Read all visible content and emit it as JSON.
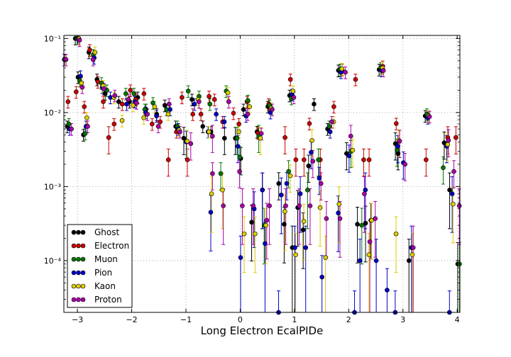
{
  "chart_data": {
    "type": "scatter",
    "title": "",
    "xlabel": "Long Electron EcalPIDe",
    "ylabel": "",
    "xlim": [
      -3.25,
      4.05
    ],
    "ylim": [
      2e-05,
      0.11
    ],
    "yscale": "log",
    "grid": true,
    "legend_position": "lower-left",
    "x_ticks": [
      -3,
      -2,
      -1,
      0,
      1,
      2,
      3,
      4
    ],
    "x_tick_labels": [
      "−3",
      "−2",
      "−1",
      "0",
      "1",
      "2",
      "3",
      "4"
    ],
    "y_ticks": [
      0.0001,
      0.001,
      0.01,
      0.1
    ],
    "y_tick_labels": [
      "10⁻⁴",
      "10⁻³",
      "10⁻²",
      "10⁻¹"
    ],
    "series": [
      {
        "name": "Ghost",
        "color": "#000000",
        "points": [
          [
            -3.25,
            0.055
          ],
          [
            -3.15,
            0.0065
          ],
          [
            -3.0,
            0.1
          ],
          [
            -2.95,
            0.03
          ],
          [
            -2.85,
            0.005
          ],
          [
            -2.75,
            0.065
          ],
          [
            -2.6,
            0.028
          ],
          [
            -2.45,
            0.018
          ],
          [
            -2.2,
            0.014
          ],
          [
            -2.0,
            0.014
          ],
          [
            -1.85,
            0.016
          ],
          [
            -1.7,
            0.011
          ],
          [
            -1.5,
            0.0095
          ],
          [
            -1.35,
            0.0125
          ],
          [
            -1.15,
            0.0065
          ],
          [
            -1.0,
            0.0045
          ],
          [
            -0.85,
            0.015
          ],
          [
            -0.65,
            0.0065
          ],
          [
            -0.5,
            0.0055
          ],
          [
            -0.25,
            0.0045
          ],
          [
            -0.05,
            0.0045
          ],
          [
            0.05,
            0.0024
          ],
          [
            0.1,
            0.011
          ],
          [
            0.25,
            0.00033
          ],
          [
            0.35,
            0.0055
          ],
          [
            0.45,
            0.0009
          ],
          [
            0.55,
            0.012
          ],
          [
            0.75,
            0.0011
          ],
          [
            0.85,
            0.00031
          ],
          [
            0.95,
            0.017
          ],
          [
            1.0,
            0.00015
          ],
          [
            1.1,
            0.00052
          ],
          [
            1.2,
            0.00026
          ],
          [
            1.3,
            0.0019
          ],
          [
            1.4,
            0.013
          ],
          [
            1.65,
            0.006
          ],
          [
            1.85,
            0.037
          ],
          [
            2.0,
            0.0028
          ],
          [
            2.2,
            0.00031
          ],
          [
            2.35,
            0.00032
          ],
          [
            2.45,
            0.00035
          ],
          [
            2.6,
            0.038
          ],
          [
            2.9,
            0.0038
          ],
          [
            2.95,
            0.0028
          ],
          [
            3.15,
            0.0001
          ],
          [
            3.45,
            0.009
          ],
          [
            3.8,
            0.0039
          ],
          [
            3.9,
            0.0009
          ],
          [
            4.05,
            9e-05
          ]
        ]
      },
      {
        "name": "Electron",
        "color": "#cc0000",
        "points": [
          [
            -3.25,
            0.053
          ],
          [
            -3.15,
            0.014
          ],
          [
            -3.0,
            0.019
          ],
          [
            -2.95,
            0.1
          ],
          [
            -2.85,
            0.012
          ],
          [
            -2.75,
            0.07
          ],
          [
            -2.6,
            0.026
          ],
          [
            -2.5,
            0.014
          ],
          [
            -2.4,
            0.0046
          ],
          [
            -2.3,
            0.007
          ],
          [
            -2.15,
            0.013
          ],
          [
            -2.0,
            0.02
          ],
          [
            -1.9,
            0.015
          ],
          [
            -1.75,
            0.018
          ],
          [
            -1.6,
            0.007
          ],
          [
            -1.45,
            0.0075
          ],
          [
            -1.3,
            0.0023
          ],
          [
            -1.15,
            0.0055
          ],
          [
            -1.05,
            0.016
          ],
          [
            -0.95,
            0.0023
          ],
          [
            -0.85,
            0.0095
          ],
          [
            -0.7,
            0.0095
          ],
          [
            -0.55,
            0.0165
          ],
          [
            -0.45,
            0.015
          ],
          [
            -0.3,
            0.0075
          ],
          [
            -0.1,
            0.0098
          ],
          [
            0.0,
            0.007
          ],
          [
            0.15,
            0.014
          ],
          [
            0.35,
            0.0053
          ],
          [
            0.55,
            0.013
          ],
          [
            0.85,
            0.0046
          ],
          [
            0.95,
            0.028
          ],
          [
            1.05,
            0.0023
          ],
          [
            1.2,
            0.0023
          ],
          [
            1.3,
            0.0071
          ],
          [
            1.5,
            0.0023
          ],
          [
            1.75,
            0.012
          ],
          [
            1.9,
            0.038
          ],
          [
            2.15,
            0.028
          ],
          [
            2.3,
            0.0023
          ],
          [
            2.4,
            0.0023
          ],
          [
            2.65,
            0.042
          ],
          [
            2.9,
            0.0071
          ],
          [
            3.45,
            0.0023
          ],
          [
            3.85,
            0.0046
          ],
          [
            4.0,
            0.0046
          ]
        ]
      },
      {
        "name": "Muon",
        "color": "#007700",
        "points": [
          [
            -3.25,
            0.055
          ],
          [
            -3.15,
            0.007
          ],
          [
            -3.0,
            0.1
          ],
          [
            -2.95,
            0.027
          ],
          [
            -2.85,
            0.0052
          ],
          [
            -2.7,
            0.06
          ],
          [
            -2.55,
            0.025
          ],
          [
            -2.45,
            0.02
          ],
          [
            -2.1,
            0.018
          ],
          [
            -1.95,
            0.018
          ],
          [
            -1.75,
            0.011
          ],
          [
            -1.6,
            0.0135
          ],
          [
            -1.35,
            0.011
          ],
          [
            -1.15,
            0.0065
          ],
          [
            -0.95,
            0.0195
          ],
          [
            -0.75,
            0.0165
          ],
          [
            -0.55,
            0.013
          ],
          [
            -0.35,
            0.0015
          ],
          [
            -0.25,
            0.0195
          ],
          [
            -0.05,
            0.0045
          ],
          [
            0.0,
            0.0025
          ],
          [
            0.15,
            0.0145
          ],
          [
            0.35,
            0.0048
          ],
          [
            0.45,
            0.0003
          ],
          [
            0.55,
            0.0125
          ],
          [
            0.9,
            0.0016
          ],
          [
            0.95,
            0.0155
          ],
          [
            1.25,
            0.0009
          ],
          [
            1.45,
            0.0023
          ],
          [
            1.65,
            0.0065
          ],
          [
            1.85,
            0.038
          ],
          [
            2.05,
            0.003
          ],
          [
            2.25,
            0.0003
          ],
          [
            2.6,
            0.04
          ],
          [
            2.9,
            0.0031
          ],
          [
            3.45,
            0.0095
          ],
          [
            3.75,
            0.0018
          ],
          [
            4.05,
            9e-05
          ]
        ]
      },
      {
        "name": "Pion",
        "color": "#0000cc",
        "points": [
          [
            -3.25,
            0.052
          ],
          [
            -3.15,
            0.006
          ],
          [
            -3.0,
            0.1
          ],
          [
            -2.95,
            0.031
          ],
          [
            -2.85,
            0.0065
          ],
          [
            -2.7,
            0.055
          ],
          [
            -2.55,
            0.022
          ],
          [
            -2.4,
            0.016
          ],
          [
            -2.1,
            0.013
          ],
          [
            -1.95,
            0.014
          ],
          [
            -1.75,
            0.01
          ],
          [
            -1.55,
            0.009
          ],
          [
            -1.3,
            0.011
          ],
          [
            -1.15,
            0.006
          ],
          [
            -1.0,
            0.004
          ],
          [
            -0.85,
            0.013
          ],
          [
            -0.6,
            0.0055
          ],
          [
            -0.45,
            0.0095
          ],
          [
            -0.55,
            0.00045
          ],
          [
            -0.3,
            0.0075
          ],
          [
            -0.05,
            0.0035
          ],
          [
            0.0,
            0.00011
          ],
          [
            0.1,
            0.009
          ],
          [
            0.25,
            0.0005
          ],
          [
            0.4,
            0.0009
          ],
          [
            0.45,
            0.00017
          ],
          [
            0.55,
            0.01
          ],
          [
            0.7,
            2e-05
          ],
          [
            0.75,
            0.00077
          ],
          [
            0.85,
            0.0011
          ],
          [
            0.95,
            0.0175
          ],
          [
            1.0,
            0.00015
          ],
          [
            1.1,
            0.0008
          ],
          [
            1.2,
            0.00015
          ],
          [
            1.3,
            0.0029
          ],
          [
            1.45,
            0.0013
          ],
          [
            1.5,
            6e-05
          ],
          [
            1.65,
            0.0055
          ],
          [
            1.8,
            0.00044
          ],
          [
            1.85,
            0.035
          ],
          [
            2.0,
            0.0026
          ],
          [
            2.1,
            2e-05
          ],
          [
            2.2,
            0.0001
          ],
          [
            2.3,
            0.0009
          ],
          [
            2.5,
            0.0001
          ],
          [
            2.6,
            0.037
          ],
          [
            2.7,
            4e-05
          ],
          [
            2.85,
            2e-05
          ],
          [
            2.9,
            0.0035
          ],
          [
            3.0,
            0.0021
          ],
          [
            3.15,
            0.00015
          ],
          [
            3.45,
            0.0085
          ],
          [
            3.8,
            0.0035
          ],
          [
            3.85,
            2e-05
          ],
          [
            3.9,
            0.0008
          ],
          [
            4.05,
            0.0003
          ]
        ]
      },
      {
        "name": "Kaon",
        "color": "#ddcc00",
        "points": [
          [
            -3.25,
            0.052
          ],
          [
            -3.0,
            0.1
          ],
          [
            -2.95,
            0.025
          ],
          [
            -2.85,
            0.0085
          ],
          [
            -2.7,
            0.065
          ],
          [
            -2.55,
            0.023
          ],
          [
            -2.35,
            0.016
          ],
          [
            -2.2,
            0.0078
          ],
          [
            -2.0,
            0.0125
          ],
          [
            -1.8,
            0.0085
          ],
          [
            -1.6,
            0.012
          ],
          [
            -1.35,
            0.0095
          ],
          [
            -1.15,
            0.0058
          ],
          [
            -1.0,
            0.0041
          ],
          [
            -0.8,
            0.015
          ],
          [
            -0.6,
            0.0055
          ],
          [
            -0.55,
            0.0008
          ],
          [
            -0.35,
            0.0009
          ],
          [
            -0.25,
            0.0185
          ],
          [
            -0.05,
            0.0055
          ],
          [
            0.05,
            0.00023
          ],
          [
            0.15,
            0.012
          ],
          [
            0.25,
            0.00023
          ],
          [
            0.35,
            0.0045
          ],
          [
            0.45,
            0.0003
          ],
          [
            0.55,
            0.0115
          ],
          [
            0.8,
            0.00046
          ],
          [
            0.9,
            0.0014
          ],
          [
            0.95,
            0.0195
          ],
          [
            1.0,
            0.00012
          ],
          [
            1.15,
            0.00034
          ],
          [
            1.3,
            0.0042
          ],
          [
            1.45,
            0.00052
          ],
          [
            1.55,
            0.00011
          ],
          [
            1.7,
            0.0075
          ],
          [
            1.8,
            0.00058
          ],
          [
            1.85,
            0.039
          ],
          [
            2.05,
            0.0031
          ],
          [
            2.35,
            0.00012
          ],
          [
            2.4,
            0.00035
          ],
          [
            2.6,
            0.04
          ],
          [
            2.85,
            0.00023
          ],
          [
            2.9,
            0.0042
          ],
          [
            3.15,
            0.00012
          ],
          [
            3.45,
            0.009
          ],
          [
            3.8,
            0.0037
          ],
          [
            3.9,
            0.00058
          ],
          [
            4.05,
            0.00023
          ]
        ]
      },
      {
        "name": "Proton",
        "color": "#aa00aa",
        "points": [
          [
            -3.25,
            0.052
          ],
          [
            -3.15,
            0.006
          ],
          [
            -3.0,
            0.095
          ],
          [
            -2.95,
            0.022
          ],
          [
            -2.85,
            0.0065
          ],
          [
            -2.75,
            0.052
          ],
          [
            -2.55,
            0.021
          ],
          [
            -2.35,
            0.017
          ],
          [
            -2.1,
            0.015
          ],
          [
            -1.95,
            0.0135
          ],
          [
            -1.75,
            0.0095
          ],
          [
            -1.55,
            0.0065
          ],
          [
            -1.35,
            0.013
          ],
          [
            -1.15,
            0.0055
          ],
          [
            -0.95,
            0.0038
          ],
          [
            -0.8,
            0.014
          ],
          [
            -0.55,
            0.0048
          ],
          [
            -0.55,
            0.0015
          ],
          [
            -0.35,
            0.00055
          ],
          [
            -0.25,
            0.014
          ],
          [
            -0.05,
            0.0016
          ],
          [
            0.0,
            0.00055
          ],
          [
            0.1,
            0.0095
          ],
          [
            0.2,
            0.00055
          ],
          [
            0.35,
            0.0052
          ],
          [
            0.45,
            0.00035
          ],
          [
            0.5,
            0.00055
          ],
          [
            0.55,
            0.011
          ],
          [
            0.8,
            0.00055
          ],
          [
            0.95,
            0.016
          ],
          [
            1.05,
            0.00055
          ],
          [
            1.25,
            0.00055
          ],
          [
            1.3,
            0.0022
          ],
          [
            1.45,
            0.0011
          ],
          [
            1.55,
            0.00037
          ],
          [
            1.65,
            0.0075
          ],
          [
            1.8,
            0.00037
          ],
          [
            1.9,
            0.035
          ],
          [
            2.0,
            0.0048
          ],
          [
            2.25,
            0.0008
          ],
          [
            2.35,
            0.00018
          ],
          [
            2.45,
            0.00037
          ],
          [
            2.6,
            0.037
          ],
          [
            2.9,
            0.0041
          ],
          [
            3.0,
            0.002
          ],
          [
            3.15,
            0.00015
          ],
          [
            3.45,
            0.0088
          ],
          [
            3.8,
            0.0042
          ],
          [
            3.9,
            0.0016
          ],
          [
            4.0,
            0.00055
          ]
        ]
      }
    ]
  }
}
